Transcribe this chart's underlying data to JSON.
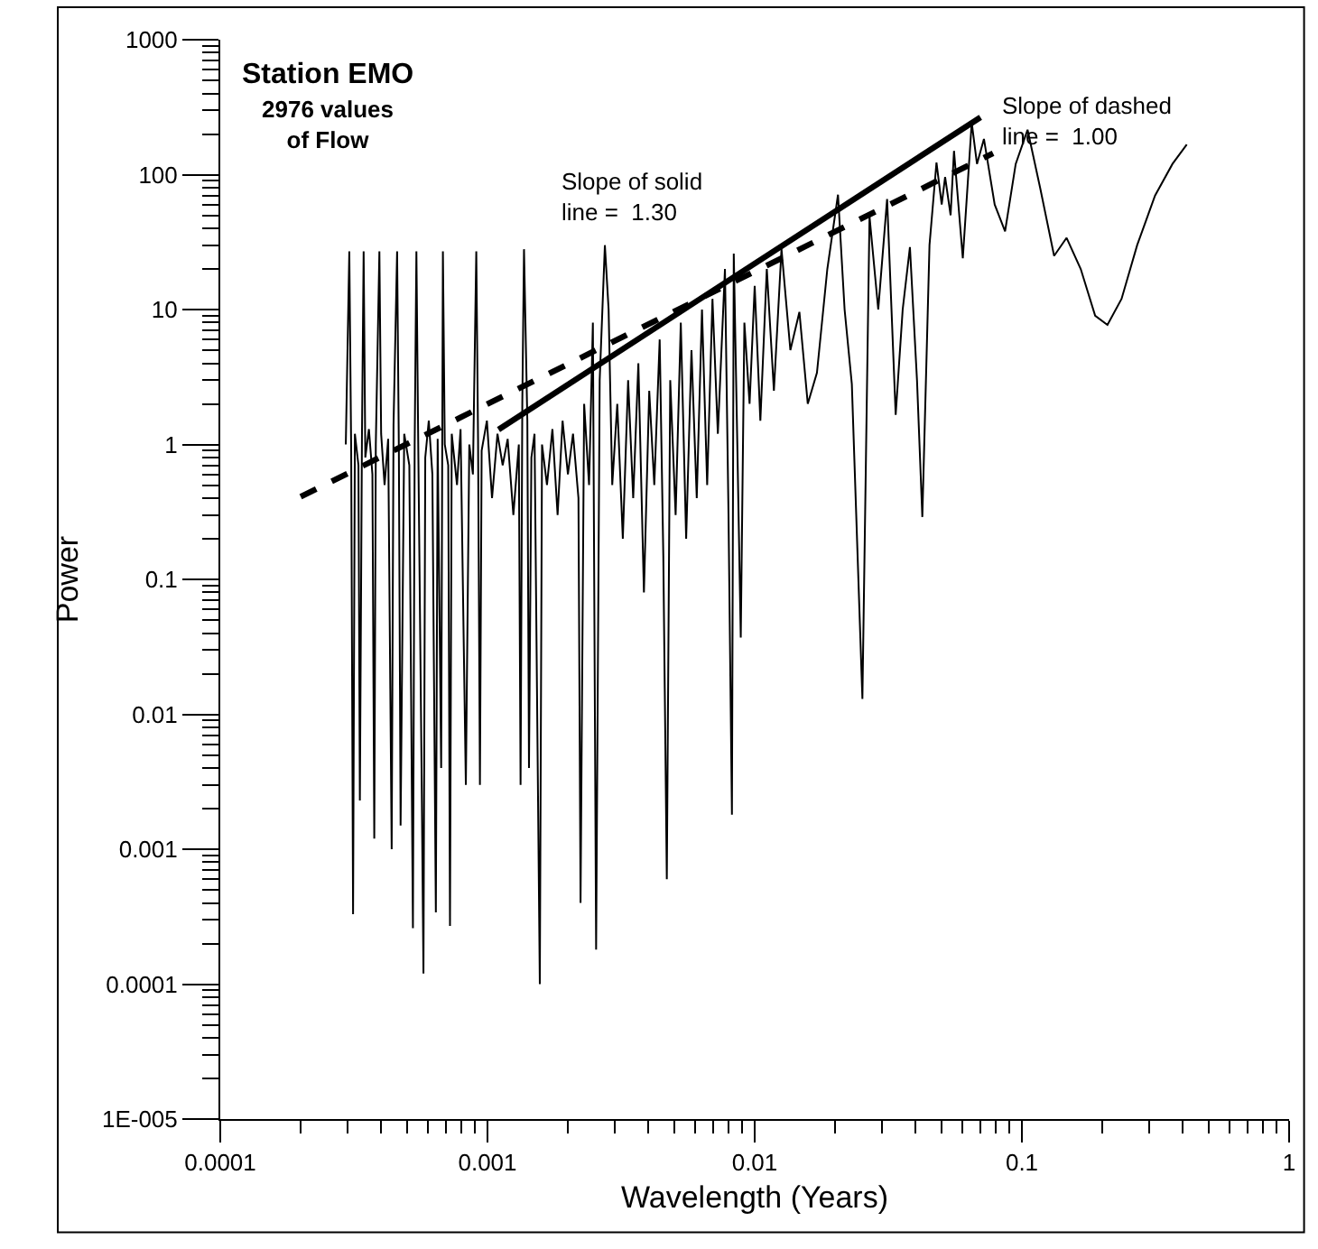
{
  "chart_data": {
    "type": "line",
    "title": "Station EMO",
    "subtitle": "2976 values\nof Flow",
    "xlabel": "Wavelength (Years)",
    "ylabel": "Power",
    "annotations": [
      "Slope of solid\nline =  1.30",
      "Slope of dashed\nline =  1.00"
    ],
    "log": "xy",
    "marker": "none",
    "xlim": [
      0.0001,
      1
    ],
    "xticks": [
      0.0001,
      0.001,
      0.01,
      0.1,
      1
    ],
    "ylim": [
      1e-05,
      1000
    ],
    "yticks": [
      {
        "value": 1e-05,
        "label": "1E-005"
      },
      0.0001,
      0.001,
      0.01,
      0.1,
      1,
      10,
      100,
      1000
    ],
    "series": [
      {
        "color": "#000000",
        "line_style": "solid",
        "x": [
          0.000295,
          0.000304,
          0.000309,
          0.000314,
          0.000319,
          0.000329,
          0.000333,
          0.000339,
          0.000344,
          0.000349,
          0.00036,
          0.000371,
          0.000377,
          0.000382,
          0.000394,
          0.0004,
          0.000412,
          0.000425,
          0.000438,
          0.000445,
          0.000459,
          0.000466,
          0.000473,
          0.000488,
          0.00051,
          0.000526,
          0.000534,
          0.000542,
          0.00055,
          0.000568,
          0.000576,
          0.000585,
          0.000603,
          0.000622,
          0.000641,
          0.000651,
          0.000671,
          0.000681,
          0.000692,
          0.000713,
          0.000724,
          0.000735,
          0.000769,
          0.000793,
          0.00083,
          0.000855,
          0.000882,
          0.000908,
          0.000922,
          0.000937,
          0.000951,
          0.000995,
          0.00104,
          0.00109,
          0.00114,
          0.00119,
          0.00125,
          0.00131,
          0.00133,
          0.00135,
          0.00137,
          0.00141,
          0.00143,
          0.00146,
          0.0015,
          0.00157,
          0.0016,
          0.00167,
          0.00175,
          0.00183,
          0.00191,
          0.002,
          0.00209,
          0.00219,
          0.00223,
          0.0023,
          0.0024,
          0.00248,
          0.00255,
          0.00263,
          0.00275,
          0.00284,
          0.00293,
          0.00306,
          0.00321,
          0.00336,
          0.00351,
          0.00367,
          0.00385,
          0.00403,
          0.00421,
          0.00441,
          0.00455,
          0.00469,
          0.00483,
          0.00506,
          0.00529,
          0.00554,
          0.0058,
          0.00607,
          0.00635,
          0.00664,
          0.00695,
          0.00728,
          0.00774,
          0.00798,
          0.00822,
          0.00835,
          0.00861,
          0.00887,
          0.00915,
          0.00957,
          0.01,
          0.0105,
          0.0111,
          0.0118,
          0.0126,
          0.0136,
          0.0147,
          0.0158,
          0.0171,
          0.0187,
          0.0205,
          0.0217,
          0.0231,
          0.0253,
          0.0269,
          0.029,
          0.0313,
          0.0337,
          0.0358,
          0.0381,
          0.0405,
          0.0424,
          0.0451,
          0.0479,
          0.0501,
          0.0516,
          0.0541,
          0.0557,
          0.0601,
          0.0649,
          0.0679,
          0.0721,
          0.0791,
          0.0865,
          0.0948,
          0.105,
          0.117,
          0.132,
          0.147,
          0.166,
          0.188,
          0.209,
          0.236,
          0.27,
          0.315,
          0.366,
          0.414
        ],
        "values": [
          1.0,
          27,
          0.9,
          0.00033,
          1.2,
          0.7,
          0.0023,
          1.1,
          27,
          0.8,
          1.3,
          0.6,
          0.0012,
          1.0,
          27,
          1.2,
          0.5,
          1.1,
          0.001,
          1.4,
          27,
          0.9,
          0.0015,
          1.2,
          0.7,
          0.00026,
          1.0,
          27,
          1.3,
          0.0025,
          0.00012,
          0.8,
          1.5,
          0.6,
          0.00034,
          1.1,
          0.004,
          27,
          1.0,
          0.7,
          0.00027,
          1.2,
          0.5,
          1.3,
          0.003,
          1.0,
          0.6,
          27,
          1.1,
          0.003,
          0.9,
          1.5,
          0.4,
          1.2,
          0.7,
          1.1,
          0.3,
          1.0,
          0.003,
          2.0,
          28,
          1.5,
          0.004,
          0.8,
          1.2,
          0.0001,
          1.0,
          0.5,
          1.3,
          0.3,
          1.5,
          0.6,
          1.2,
          0.4,
          0.0004,
          2.0,
          0.5,
          8,
          0.00018,
          3,
          30,
          10,
          0.5,
          2.0,
          0.2,
          3,
          0.4,
          4,
          0.08,
          2.5,
          0.5,
          6,
          0.15,
          0.0006,
          3,
          0.3,
          8,
          0.2,
          5,
          0.4,
          10,
          0.5,
          12,
          1.2,
          20,
          0.3,
          0.0018,
          26,
          1.0,
          0.037,
          8,
          2,
          15,
          1.5,
          20,
          2.5,
          28,
          5,
          9.6,
          2,
          3.4,
          20,
          71,
          10,
          2.8,
          0.013,
          49,
          10,
          66,
          1.66,
          10,
          29,
          3,
          0.29,
          30,
          123,
          60,
          96,
          50,
          150,
          24,
          243,
          120,
          184,
          60,
          38,
          120,
          215,
          80,
          25,
          34,
          20,
          9,
          7.7,
          12,
          30,
          70,
          120,
          167
        ]
      },
      {
        "color": "#000000",
        "line_style": "solid",
        "x": [
          0.0011,
          0.07
        ],
        "values": [
          1.29,
          266
        ]
      },
      {
        "color": "#000000",
        "line_style": "dashed",
        "x": [
          0.0002,
          0.078
        ],
        "values": [
          0.41,
          144
        ]
      }
    ]
  }
}
